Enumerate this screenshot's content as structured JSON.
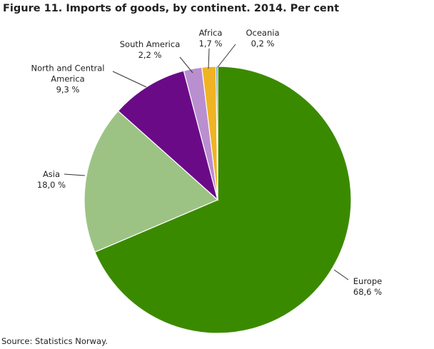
{
  "chart_data": {
    "type": "pie",
    "title": "Figure 11. Imports of goods, by continent. 2014. Per cent",
    "source": "Source: Statistics Norway.",
    "categories": [
      "Europe",
      "Asia",
      "North and Central America",
      "South America",
      "Africa",
      "Oceania"
    ],
    "values": [
      68.6,
      18.0,
      9.3,
      2.2,
      1.7,
      0.2
    ],
    "value_labels": [
      "68,6  %",
      "18,0  %",
      "9,3  %",
      "2,2  %",
      "1,7  %",
      "0,2  %"
    ],
    "colors": [
      "#3a8a00",
      "#9dc384",
      "#6a0a87",
      "#b98fd0",
      "#f0b323",
      "#2f6fb0"
    ]
  }
}
